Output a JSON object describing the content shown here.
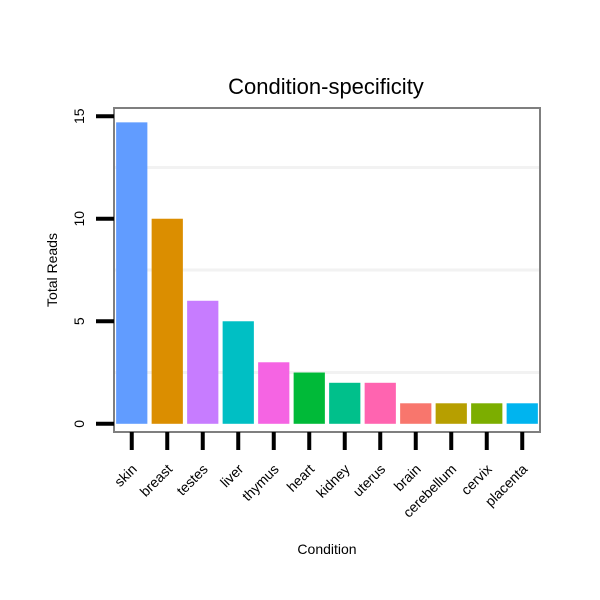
{
  "chart_data": {
    "type": "bar",
    "title": "Condition-specificity",
    "xlabel": "Condition",
    "ylabel": "Total Reads",
    "categories": [
      "skin",
      "breast",
      "testes",
      "liver",
      "thymus",
      "heart",
      "kidney",
      "uterus",
      "brain",
      "cerebellum",
      "cervix",
      "placenta"
    ],
    "values": [
      14.7,
      10,
      6,
      5,
      3,
      2.5,
      2,
      2,
      1,
      1,
      1,
      1
    ],
    "colors": [
      "#619CFF",
      "#DB8E00",
      "#C77CFF",
      "#00BFC4",
      "#F564E3",
      "#00BA38",
      "#00C08B",
      "#FF64B0",
      "#F8766D",
      "#B79F00",
      "#7CAE00",
      "#00B4EF"
    ],
    "ylim": [
      -0.4,
      15.4
    ],
    "yticks": [
      0,
      5,
      10,
      15
    ],
    "grid": true
  }
}
